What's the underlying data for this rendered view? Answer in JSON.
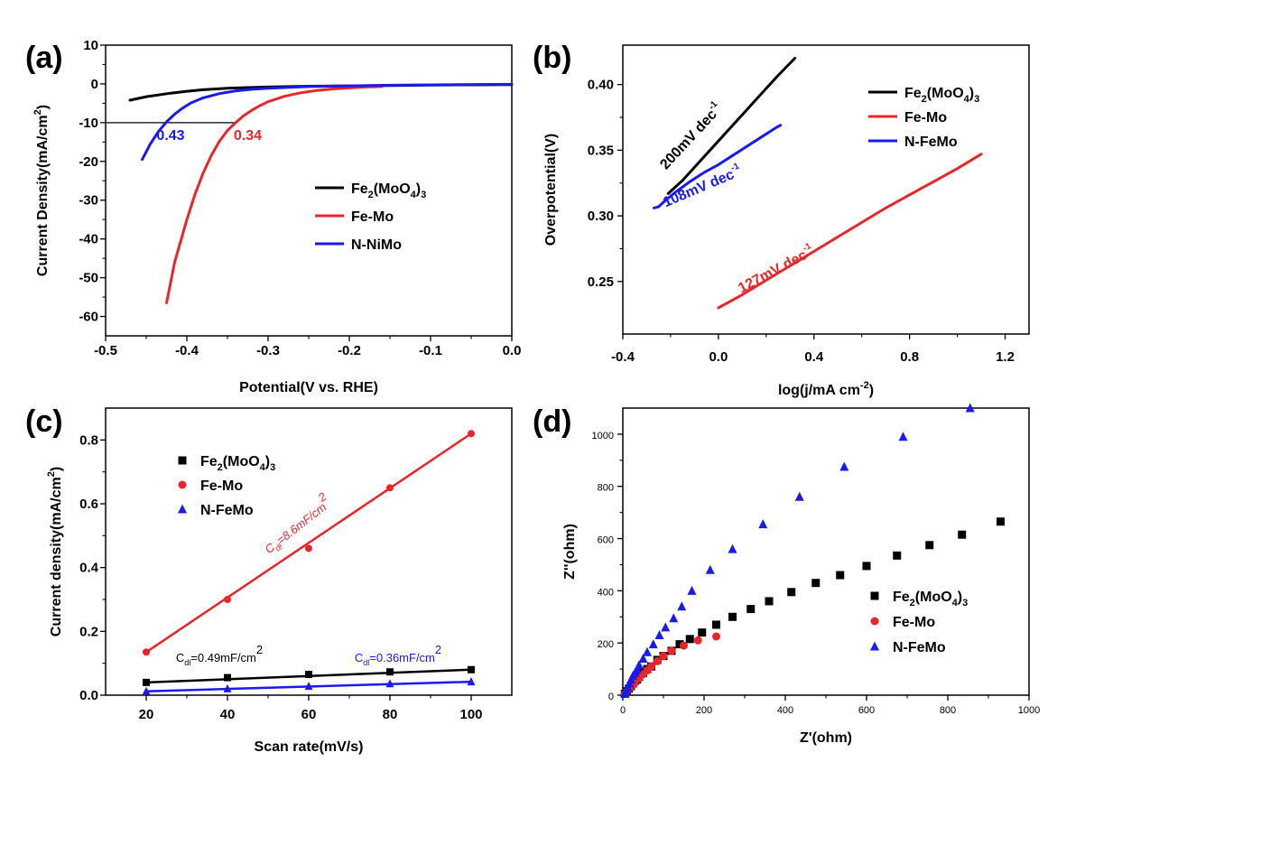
{
  "colors": {
    "black": "#000000",
    "red": "#e8262a",
    "blue": "#1a1aee"
  },
  "chart_data": [
    {
      "panel": "(a)",
      "type": "line",
      "xlabel": "Potential(V vs. RHE)",
      "ylabel": "Current Density(mA/cm2)",
      "xlim": [
        -0.5,
        0.0
      ],
      "ylim": [
        -65,
        10
      ],
      "xticks": [
        -0.5,
        -0.4,
        -0.3,
        -0.2,
        -0.1,
        0.0
      ],
      "xtick_labels": [
        "-0.5",
        "-0.4",
        "-0.3",
        "-0.2",
        "-0.1",
        "0.0"
      ],
      "yticks": [
        10,
        0,
        -10,
        -20,
        -30,
        -40,
        -50,
        -60
      ],
      "ytick_labels": [
        "10",
        "0",
        "-10",
        "-20",
        "-30",
        "-40",
        "-50",
        "-60"
      ],
      "reference_line": {
        "y": -10,
        "x_from": -0.5,
        "x_to": -0.34
      },
      "annotations": [
        {
          "text": "0.43",
          "x": -0.42,
          "y": -14.5,
          "color": "blue"
        },
        {
          "text": "0.34",
          "x": -0.325,
          "y": -14.5,
          "color": "red"
        }
      ],
      "legend": {
        "placement": "center-right",
        "entries": [
          {
            "label": "Fe",
            "sub": "2",
            "label2": "(MoO",
            "sub2": "4",
            "label3": ")",
            "sub3": "3",
            "color": "black"
          },
          {
            "label": "Fe-Mo",
            "color": "red"
          },
          {
            "label": "N-NiMo",
            "color": "blue"
          }
        ]
      },
      "series": [
        {
          "name": "Fe2(MoO4)3",
          "color": "black",
          "x": [
            -0.47,
            -0.45,
            -0.42,
            -0.4,
            -0.38,
            -0.35,
            -0.3,
            -0.25,
            -0.2,
            -0.15,
            -0.1,
            -0.05,
            0.0
          ],
          "y": [
            -4.2,
            -3.3,
            -2.4,
            -1.9,
            -1.5,
            -1.1,
            -0.8,
            -0.6,
            -0.5,
            -0.4,
            -0.3,
            -0.25,
            -0.2
          ]
        },
        {
          "name": "Fe-Mo",
          "color": "red",
          "x": [
            -0.425,
            -0.415,
            -0.4,
            -0.39,
            -0.38,
            -0.37,
            -0.36,
            -0.35,
            -0.34,
            -0.33,
            -0.32,
            -0.31,
            -0.3,
            -0.28,
            -0.26,
            -0.24,
            -0.22,
            -0.2,
            -0.18,
            -0.16
          ],
          "y": [
            -56.5,
            -46,
            -35,
            -28.5,
            -23,
            -18.5,
            -14.8,
            -12,
            -10,
            -8.2,
            -6.8,
            -5.6,
            -4.6,
            -3.2,
            -2.3,
            -1.7,
            -1.3,
            -1.0,
            -0.8,
            -0.7
          ]
        },
        {
          "name": "N-NiMo",
          "color": "blue",
          "x": [
            -0.455,
            -0.445,
            -0.435,
            -0.425,
            -0.415,
            -0.405,
            -0.395,
            -0.38,
            -0.36,
            -0.34,
            -0.32,
            -0.3,
            -0.25,
            -0.2,
            -0.15,
            -0.1,
            -0.05,
            0.0
          ],
          "y": [
            -19.5,
            -15.5,
            -12.3,
            -9.8,
            -7.8,
            -6.2,
            -4.9,
            -3.6,
            -2.5,
            -1.8,
            -1.4,
            -1.1,
            -0.7,
            -0.5,
            -0.35,
            -0.25,
            -0.15,
            -0.1
          ]
        }
      ]
    },
    {
      "panel": "(b)",
      "type": "line",
      "xlabel": "log(j/mA cm-2)",
      "ylabel": "Overpotential(V)",
      "xlim": [
        -0.4,
        1.3
      ],
      "ylim": [
        0.21,
        0.43
      ],
      "xticks": [
        -0.4,
        0.0,
        0.4,
        0.8,
        1.2
      ],
      "xtick_labels": [
        "-0.4",
        "0.0",
        "0.4",
        "0.8",
        "1.2"
      ],
      "yticks": [
        0.25,
        0.3,
        0.35,
        0.4
      ],
      "ytick_labels": [
        "0.25",
        "0.30",
        "0.35",
        "0.40"
      ],
      "annotations": [
        {
          "text": "200mV dec",
          "sup": "-1",
          "x": -0.1,
          "y": 0.358,
          "angle": -47,
          "color": "black"
        },
        {
          "text": "108mV dec",
          "sup": "-1",
          "x": -0.06,
          "y": 0.319,
          "angle": -23,
          "color": "blue"
        },
        {
          "text": "127mV dec",
          "sup": "-1",
          "x": 0.25,
          "y": 0.256,
          "angle": -28,
          "color": "red"
        }
      ],
      "legend": {
        "placement": "top-right",
        "entries": [
          {
            "label": "Fe",
            "sub": "2",
            "label2": "(MoO",
            "sub2": "4",
            "label3": ")",
            "sub3": "3",
            "color": "black"
          },
          {
            "label": "Fe-Mo",
            "color": "red"
          },
          {
            "label": "N-FeMo",
            "color": "blue"
          }
        ]
      },
      "series": [
        {
          "name": "Fe2(MoO4)3",
          "color": "black",
          "x": [
            -0.21,
            -0.15,
            -0.1,
            -0.05,
            0.0,
            0.05,
            0.1,
            0.15,
            0.2,
            0.25,
            0.32
          ],
          "y": [
            0.317,
            0.327,
            0.337,
            0.347,
            0.357,
            0.367,
            0.377,
            0.387,
            0.397,
            0.407,
            0.42
          ]
        },
        {
          "name": "Fe-Mo",
          "color": "red",
          "x": [
            0.0,
            0.1,
            0.2,
            0.3,
            0.4,
            0.5,
            0.6,
            0.7,
            0.8,
            0.9,
            1.0,
            1.1
          ],
          "y": [
            0.23,
            0.24,
            0.251,
            0.262,
            0.273,
            0.284,
            0.295,
            0.306,
            0.316,
            0.326,
            0.336,
            0.347
          ]
        },
        {
          "name": "N-FeMo",
          "color": "blue",
          "x": [
            -0.27,
            -0.25,
            -0.22,
            -0.18,
            -0.12,
            -0.06,
            0.0,
            0.06,
            0.12,
            0.18,
            0.24,
            0.26
          ],
          "y": [
            0.306,
            0.307,
            0.312,
            0.318,
            0.326,
            0.333,
            0.339,
            0.346,
            0.353,
            0.36,
            0.367,
            0.369
          ]
        }
      ]
    },
    {
      "panel": "(c)",
      "type": "scatter",
      "xlabel": "Scan rate(mV/s)",
      "ylabel": "Current density(mA/cm2)",
      "xlim": [
        10,
        110
      ],
      "ylim": [
        0,
        0.9
      ],
      "xticks": [
        20,
        40,
        60,
        80,
        100
      ],
      "xtick_labels": [
        "20",
        "40",
        "60",
        "80",
        "100"
      ],
      "yticks": [
        0.0,
        0.2,
        0.4,
        0.6,
        0.8
      ],
      "ytick_labels": [
        "0.0",
        "0.2",
        "0.4",
        "0.6",
        "0.8"
      ],
      "annotations": [
        {
          "text": "C",
          "sub": "dl",
          "rest": "=8.6mF/cm",
          "sup": "2",
          "x": 58,
          "y": 0.52,
          "angle": -38,
          "color": "red"
        },
        {
          "text": "C",
          "sub": "dl",
          "rest": "=0.49mF/cm",
          "sup": "2",
          "x": 38,
          "y": 0.105,
          "angle": 0,
          "color": "black"
        },
        {
          "text": "C",
          "sub": "dl",
          "rest": "=0.36mF/cm",
          "sup": "2",
          "x": 82,
          "y": 0.105,
          "angle": 0,
          "color": "blue"
        }
      ],
      "legend": {
        "placement": "top-left",
        "entries": [
          {
            "label": "Fe",
            "sub": "2",
            "label2": "(MoO",
            "sub2": "4",
            "label3": ")",
            "sub3": "3",
            "color": "black",
            "marker": "square"
          },
          {
            "label": "Fe-Mo",
            "color": "red",
            "marker": "circle"
          },
          {
            "label": "N-FeMo",
            "color": "blue",
            "marker": "triangle"
          }
        ]
      },
      "series": [
        {
          "name": "Fe2(MoO4)3",
          "color": "black",
          "marker": "square",
          "x": [
            20,
            40,
            60,
            80,
            100
          ],
          "y": [
            0.04,
            0.055,
            0.065,
            0.073,
            0.08
          ]
        },
        {
          "name": "Fe-Mo",
          "color": "red",
          "marker": "circle",
          "x": [
            20,
            40,
            60,
            80,
            100
          ],
          "y": [
            0.135,
            0.3,
            0.46,
            0.65,
            0.82
          ]
        },
        {
          "name": "N-FeMo",
          "color": "blue",
          "marker": "triangle",
          "x": [
            20,
            40,
            60,
            80,
            100
          ],
          "y": [
            0.012,
            0.02,
            0.028,
            0.036,
            0.042
          ]
        }
      ]
    },
    {
      "panel": "(d)",
      "type": "scatter",
      "xlabel": "Z'(ohm)",
      "ylabel": "Z''(ohm)",
      "xlim": [
        0,
        1000
      ],
      "ylim": [
        0,
        1100
      ],
      "xticks": [
        0,
        200,
        400,
        600,
        800,
        1000
      ],
      "xtick_labels": [
        "0",
        "200",
        "400",
        "600",
        "800",
        "1000"
      ],
      "yticks": [
        0,
        200,
        400,
        600,
        800,
        1000
      ],
      "ytick_labels": [
        "0",
        "200",
        "400",
        "600",
        "800",
        "1000"
      ],
      "legend": {
        "placement": "bottom-right",
        "entries": [
          {
            "label": "Fe",
            "sub": "2",
            "label2": "(MoO",
            "sub2": "4",
            "label3": ")",
            "sub3": "3",
            "color": "black",
            "marker": "square"
          },
          {
            "label": "Fe-Mo",
            "color": "red",
            "marker": "circle"
          },
          {
            "label": "N-FeMo",
            "color": "blue",
            "marker": "triangle"
          }
        ]
      },
      "series": [
        {
          "name": "Fe2(MoO4)3",
          "color": "black",
          "marker": "square",
          "x": [
            5,
            10,
            15,
            20,
            25,
            30,
            35,
            40,
            50,
            60,
            70,
            85,
            100,
            120,
            140,
            165,
            195,
            230,
            270,
            315,
            360,
            415,
            475,
            535,
            600,
            675,
            755,
            835,
            930
          ],
          "y": [
            5,
            15,
            25,
            35,
            45,
            55,
            60,
            70,
            85,
            100,
            110,
            135,
            150,
            170,
            195,
            215,
            240,
            270,
            300,
            330,
            360,
            395,
            430,
            460,
            495,
            535,
            575,
            615,
            665
          ]
        },
        {
          "name": "Fe-Mo",
          "color": "red",
          "marker": "circle",
          "x": [
            5,
            10,
            15,
            20,
            25,
            30,
            40,
            50,
            60,
            70,
            85,
            100,
            120,
            150,
            185,
            230
          ],
          "y": [
            5,
            15,
            25,
            35,
            40,
            50,
            65,
            80,
            95,
            110,
            130,
            150,
            170,
            190,
            210,
            225
          ]
        },
        {
          "name": "N-FeMo",
          "color": "blue",
          "marker": "triangle",
          "x": [
            5,
            8,
            12,
            16,
            20,
            25,
            30,
            35,
            40,
            50,
            60,
            75,
            90,
            105,
            125,
            145,
            170,
            215,
            270,
            345,
            435,
            545,
            690,
            855
          ],
          "y": [
            5,
            20,
            30,
            45,
            60,
            75,
            85,
            100,
            115,
            140,
            165,
            195,
            230,
            260,
            295,
            340,
            400,
            480,
            560,
            655,
            760,
            875,
            990,
            1100
          ]
        }
      ]
    }
  ]
}
